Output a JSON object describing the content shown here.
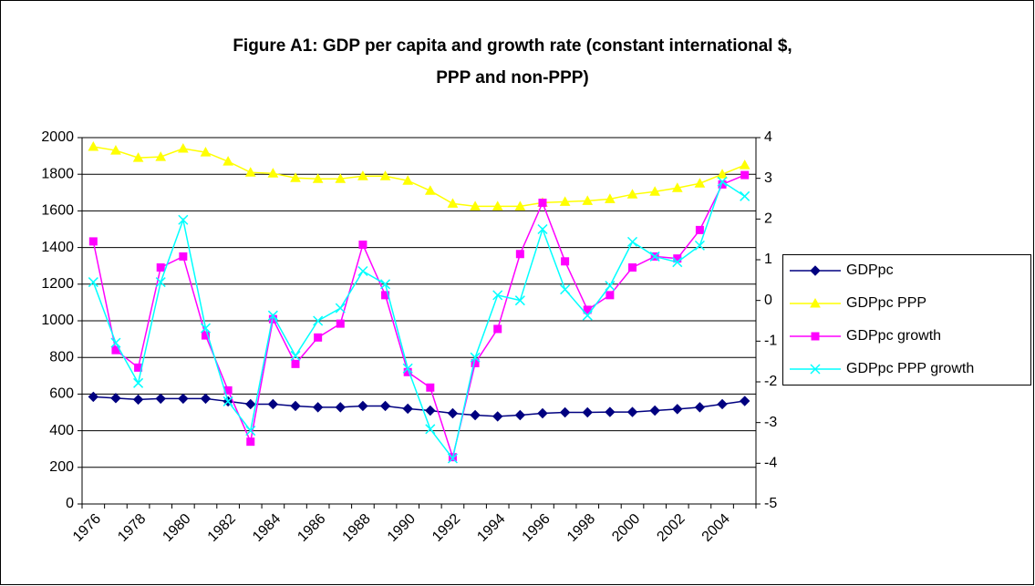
{
  "chart_data": {
    "type": "line",
    "title": [
      "Figure A1: GDP per capita and growth rate (constant international $,",
      "PPP and non-PPP)"
    ],
    "categories": [
      "1976",
      null,
      "1978",
      null,
      "1980",
      null,
      "1982",
      null,
      "1984",
      null,
      "1986",
      null,
      "1988",
      null,
      "1990",
      null,
      "1992",
      null,
      "1994",
      null,
      "1996",
      null,
      "1998",
      null,
      "2000",
      null,
      "2002",
      null,
      "2004",
      null
    ],
    "series": [
      {
        "name": "GDPpc",
        "color": "#000080",
        "marker": "diamond",
        "values": [
          585,
          578,
          570,
          575,
          575,
          575,
          560,
          545,
          545,
          535,
          528,
          528,
          535,
          535,
          520,
          510,
          495,
          485,
          478,
          485,
          495,
          500,
          500,
          502,
          502,
          510,
          518,
          528,
          545,
          562
        ]
      },
      {
        "name": "GDPpc PPP",
        "color": "#FFFF00",
        "marker": "triangle",
        "values": [
          1950,
          1930,
          1890,
          1895,
          1940,
          1920,
          1870,
          1810,
          1805,
          1780,
          1775,
          1775,
          1790,
          1790,
          1765,
          1710,
          1640,
          1625,
          1625,
          1625,
          1645,
          1650,
          1655,
          1665,
          1690,
          1705,
          1725,
          1750,
          1800,
          1850
        ]
      },
      {
        "name": "GDPpc growth",
        "color": "#FF00FF",
        "marker": "square",
        "axis": "y2",
        "values": [
          1.45,
          -1.22,
          -1.65,
          0.81,
          1.08,
          -0.86,
          -2.21,
          -3.47,
          -0.46,
          -1.56,
          -0.91,
          -0.57,
          1.37,
          0.13,
          -1.76,
          -2.14,
          -3.85,
          -1.54,
          -0.7,
          1.14,
          2.4,
          0.96,
          -0.23,
          0.13,
          0.81,
          1.08,
          1.03,
          1.73,
          2.85,
          3.08
        ]
      },
      {
        "name": "GDPpc PPP growth",
        "color": "#00FFFF",
        "marker": "x",
        "axis": "y2",
        "values": [
          0.45,
          -1.04,
          -2.03,
          0.45,
          1.98,
          -0.68,
          -2.48,
          -3.2,
          -0.37,
          -1.36,
          -0.5,
          -0.19,
          0.72,
          0.4,
          -1.67,
          -3.16,
          -3.88,
          -1.4,
          0.13,
          0,
          1.75,
          0.27,
          -0.37,
          0.36,
          1.44,
          1.08,
          0.94,
          1.35,
          2.92,
          2.56
        ]
      }
    ],
    "ylim": [
      0,
      2000
    ],
    "yticks": [
      0,
      200,
      400,
      600,
      800,
      1000,
      1200,
      1400,
      1600,
      1800,
      2000
    ],
    "y2lim": [
      -5,
      4
    ],
    "y2ticks": [
      -5,
      -4,
      -3,
      -2,
      -1,
      0,
      1,
      2,
      3,
      4
    ],
    "grid": true,
    "legend": "right"
  }
}
